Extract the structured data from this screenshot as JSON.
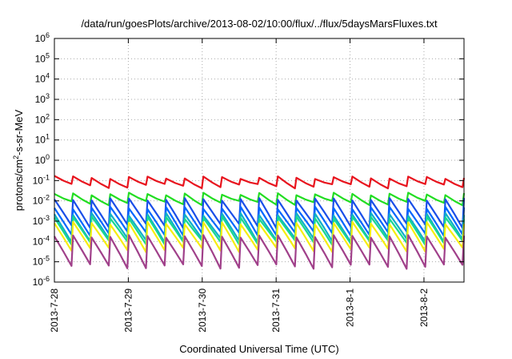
{
  "chart_data": {
    "type": "line",
    "title": "/data/run/goesPlots/archive/2013-08-02/10:00/flux/../flux/5daysMarsFluxes.txt",
    "xlabel": "Coordinated Universal Time (UTC)",
    "ylabel": "protons/cm2-s-sr-MeV",
    "ylabel_parts": {
      "before": "protons/cm",
      "sup": "2",
      "after": "-s-sr-MeV"
    },
    "y_scale": "log",
    "ylim": [
      1e-06,
      1000000.0
    ],
    "xlim": [
      "2013-07-28 00:00",
      "2013-08-02 13:00"
    ],
    "grid": true,
    "legend": "none",
    "x_ticks": [
      {
        "date": "2013-07-28",
        "label": "2013-7-28"
      },
      {
        "date": "2013-07-29",
        "label": "2013-7-29"
      },
      {
        "date": "2013-07-30",
        "label": "2013-7-30"
      },
      {
        "date": "2013-07-31",
        "label": "2013-7-31"
      },
      {
        "date": "2013-08-01",
        "label": "2013-8-1"
      },
      {
        "date": "2013-08-02",
        "label": "2013-8-2"
      }
    ],
    "y_ticks": [
      {
        "exp": -6,
        "base": "10",
        "sup": "-6"
      },
      {
        "exp": -5,
        "base": "10",
        "sup": "-5"
      },
      {
        "exp": -4,
        "base": "10",
        "sup": "-4"
      },
      {
        "exp": -3,
        "base": "10",
        "sup": "-3"
      },
      {
        "exp": -2,
        "base": "10",
        "sup": "-2"
      },
      {
        "exp": -1,
        "base": "10",
        "sup": "-1"
      },
      {
        "exp": 0,
        "base": "10",
        "sup": "0"
      },
      {
        "exp": 1,
        "base": "10",
        "sup": "1"
      },
      {
        "exp": 2,
        "base": "10",
        "sup": "2"
      },
      {
        "exp": 3,
        "base": "10",
        "sup": "3"
      },
      {
        "exp": 4,
        "base": "10",
        "sup": "4"
      },
      {
        "exp": 5,
        "base": "10",
        "sup": "5"
      },
      {
        "exp": 6,
        "base": "10",
        "sup": "6"
      }
    ],
    "series_description": "Eight channels, each a sawtooth with ~22 cycles over 5.5 days: sharp rise then gradual decay. Values approximate (peak/trough).",
    "series": [
      {
        "color": "#e8141e",
        "peak": 0.14,
        "trough": 0.055,
        "start_peak": 0.17,
        "end_trough": 0.045
      },
      {
        "color": "#22dd22",
        "peak": 0.022,
        "trough": 0.008
      },
      {
        "color": "#1a4ee8",
        "peak": 0.012,
        "trough": 0.0006
      },
      {
        "color": "#0066ff",
        "peak": 0.0045,
        "trough": 0.00025
      },
      {
        "color": "#11b0c8",
        "peak": 0.0022,
        "trough": 0.00012
      },
      {
        "color": "#18d890",
        "peak": 0.0015,
        "trough": 9e-05
      },
      {
        "color": "#f6ee10",
        "peak": 0.0008,
        "trough": 4e-05
      },
      {
        "color": "#a0408a",
        "peak": 0.00018,
        "trough": 6e-06
      }
    ],
    "cycles": 22,
    "grid_color": "#aaaaaa",
    "axis_color": "#000000"
  }
}
